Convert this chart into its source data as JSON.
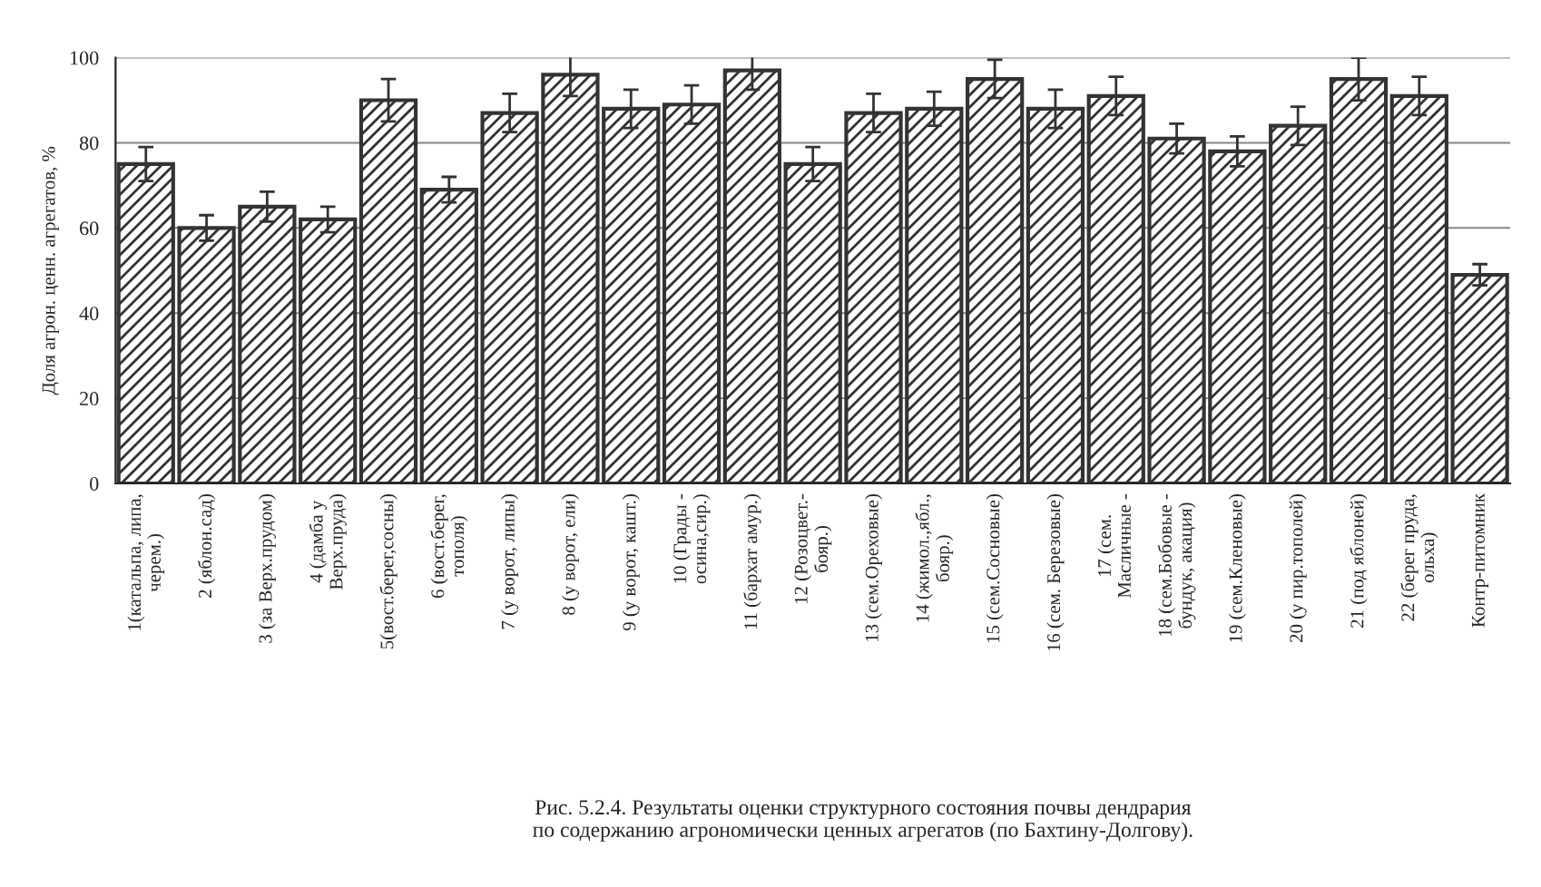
{
  "chart_data": {
    "type": "bar",
    "ylabel": "Доля агрон. ценн. агрегатов, %",
    "categories": [
      "1(катальпа, липа,\nчерем.)",
      "2 (яблон.сад)",
      "3 (за Верх.прудом)",
      "4 (дамба у\nВерх.пруда)",
      "5(вост.берег,сосны)",
      "6 (вост.берег,\nтополя)",
      "7 (у ворот, липы)",
      "8 (у ворот, ели)",
      "9 (у ворот, кашт.)",
      "10 (Грады -\nосина,сир.)",
      "11 (бархат амур.)",
      "12 (Розоцвет.-\nбояр.)",
      "13 (сем.Ореховые)",
      "14 (жимол.,ябл.,\nбояр.)",
      "15 (сем.Сосновые)",
      "16 (сем. Березовые)",
      "17 (сем.\nМасличные -",
      "18 (сем.Бобовые -\nбундук, акация)",
      "19 (сем.Кленовые)",
      "20 (у пир.тополей)",
      "21 (под яблоней)",
      "22 (берег пруда,\nольха)",
      "Контр-питомник"
    ],
    "values": [
      75,
      60,
      65,
      62,
      90,
      69,
      87,
      96,
      88,
      89,
      97,
      75,
      87,
      88,
      95,
      88,
      91,
      81,
      78,
      84,
      95,
      91,
      49
    ],
    "errors": [
      4,
      3,
      3.5,
      3,
      5,
      3,
      4.5,
      5,
      4.5,
      4.5,
      4.5,
      4,
      4.5,
      4,
      4.5,
      4.5,
      4.5,
      3.5,
      3.5,
      4.5,
      5,
      4.5,
      2.5
    ],
    "color": "#333333",
    "ylim": [
      0,
      100
    ],
    "yticks": [
      0,
      20,
      40,
      60,
      80,
      100
    ],
    "grid": "y",
    "annotations": [
      "Рис. 5.2.4. Результаты оценки структурного состояния почвы дендрария\nпо содержанию агрономически ценных агрегатов (по Бахтину-Долгову)."
    ]
  }
}
